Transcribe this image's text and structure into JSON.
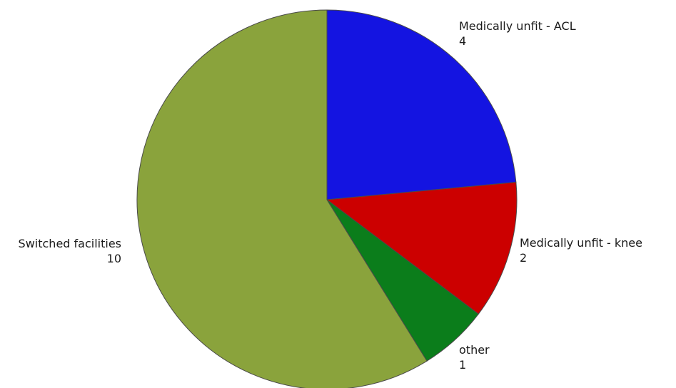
{
  "chart_data": {
    "type": "pie",
    "title": "",
    "categories": [
      "Medically unfit - ACL",
      "Medically unfit - knee",
      "other",
      "Switched facilities"
    ],
    "values": [
      4,
      2,
      1,
      10
    ],
    "colors": [
      "#1414e1",
      "#cc0000",
      "#0b7d1b",
      "#8aa33c"
    ],
    "start_angle_deg": 0,
    "direction": "clockwise",
    "legend": "none",
    "data_labels": "outside"
  }
}
